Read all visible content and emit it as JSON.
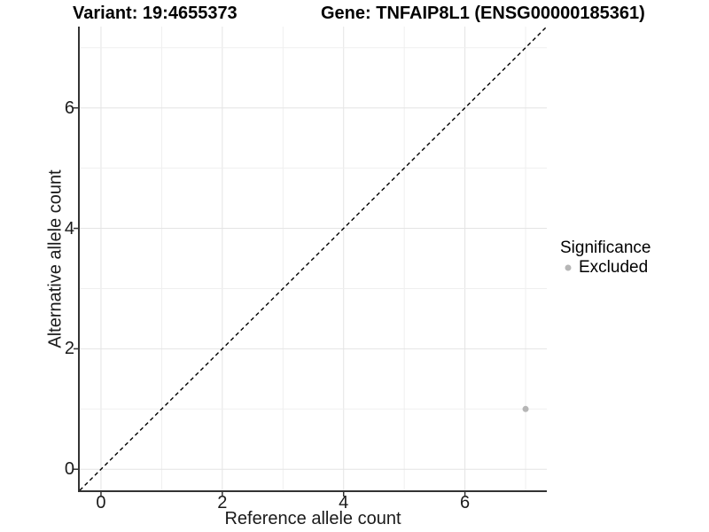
{
  "titles": {
    "variant": "Variant: 19:4655373",
    "gene": "Gene: TNFAIP8L1 (ENSG00000185361)"
  },
  "axes": {
    "x_label": "Reference allele count",
    "y_label": "Alternative allele count"
  },
  "legend": {
    "title": "Significance",
    "items": [
      {
        "label": "Excluded",
        "color": "#b6b6b6"
      }
    ]
  },
  "colors": {
    "axis_line": "#333333",
    "tick_mark": "#333333",
    "grid_major": "#e4e4e4",
    "grid_minor": "#efefef",
    "reference_line": "#000000",
    "point": "#b6b6b6"
  },
  "chart_data": {
    "type": "scatter",
    "title": "Variant: 19:4655373 | Gene: TNFAIP8L1 (ENSG00000185361)",
    "xlabel": "Reference allele count",
    "ylabel": "Alternative allele count",
    "xlim": [
      -0.35,
      7.35
    ],
    "ylim": [
      -0.35,
      7.35
    ],
    "x_ticks": [
      0,
      2,
      4,
      6
    ],
    "y_ticks": [
      0,
      2,
      4,
      6
    ],
    "grid": "on",
    "grid_interval_major": 2,
    "grid_interval_minor": 1,
    "legend_position": "right",
    "series": [
      {
        "name": "Excluded",
        "color": "#b6b6b6",
        "points": [
          {
            "x": 7,
            "y": 1
          }
        ]
      }
    ],
    "reference_line": {
      "style": "dashed",
      "equation": "y = x",
      "from": [
        -0.35,
        -0.35
      ],
      "to": [
        7.35,
        7.35
      ]
    }
  }
}
